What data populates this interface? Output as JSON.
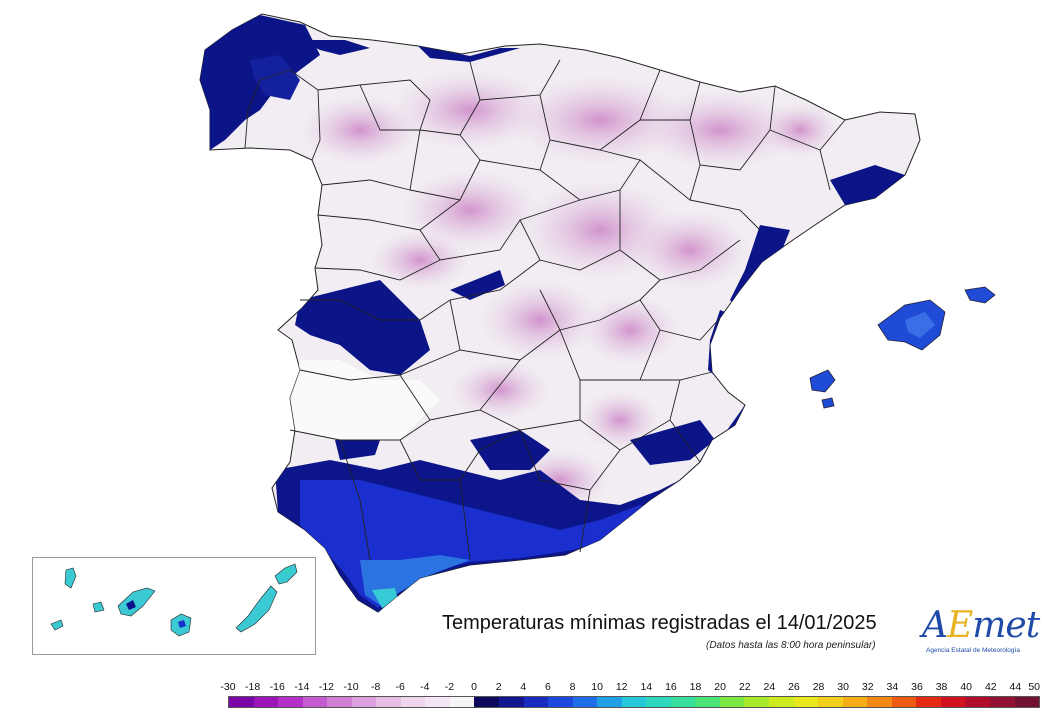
{
  "map": {
    "title": "Temperaturas mínimas registradas el 14/01/2025",
    "subtitle": "(Datos hasta las 8:00 hora peninsular)",
    "colors": {
      "background": "#ffffff",
      "sea_outline": "#1c1c8c",
      "cold_magenta": "#d4a5cf",
      "light_pink": "#e8d3e6",
      "near_zero": "#f2eef3",
      "positive_dark_blue": "#0b157a",
      "positive_blue": "#1d2fd6",
      "positive_cyan": "#3cd3d8"
    }
  },
  "logo": {
    "a_text": "A",
    "e_text": "E",
    "met_text": "met",
    "subtext": "Agencia Estatal de Meteorología"
  },
  "legend": {
    "labels": [
      "-30",
      "-18",
      "-16",
      "-14",
      "-12",
      "-10",
      "-8",
      "-6",
      "-4",
      "-2",
      "0",
      "2",
      "4",
      "6",
      "8",
      "10",
      "12",
      "14",
      "16",
      "18",
      "20",
      "22",
      "24",
      "26",
      "28",
      "30",
      "32",
      "34",
      "36",
      "38",
      "40",
      "42",
      "44",
      "50"
    ],
    "colors": [
      "#7b06a8",
      "#9b15b9",
      "#b331c6",
      "#c45ccf",
      "#d07fd5",
      "#dba0dd",
      "#e5bde5",
      "#edd5ec",
      "#f3e6f2",
      "#f7f4f7",
      "#0d0a5c",
      "#12168f",
      "#1a2bc0",
      "#1e47e0",
      "#1f6de8",
      "#22a0e6",
      "#27c9d8",
      "#2ed8bf",
      "#39e09c",
      "#4be476",
      "#7be845",
      "#a9ea2a",
      "#cdeb1f",
      "#e8e81d",
      "#f2cf1a",
      "#f5ad17",
      "#f38814",
      "#ee5a12",
      "#e52a14",
      "#d1121f",
      "#b30d2d",
      "#931133",
      "#741133"
    ]
  }
}
